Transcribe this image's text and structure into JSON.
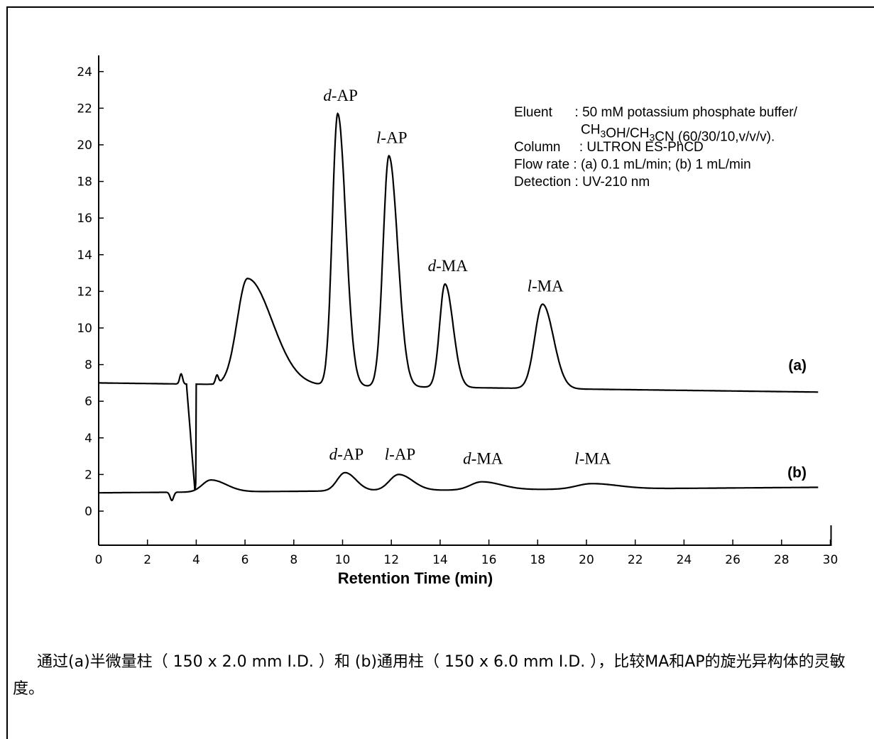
{
  "chart_data": {
    "type": "line",
    "xlabel": "Retention Time (min)",
    "ylabel": "",
    "xlim": [
      0,
      30
    ],
    "ylim": [
      -3,
      26
    ],
    "x_ticks": [
      "0",
      "2",
      "4",
      "6",
      "8",
      "10",
      "12",
      "14",
      "16",
      "18",
      "20",
      "22",
      "24",
      "26",
      "28",
      "30"
    ],
    "y_ticks": [
      "0",
      "2",
      "4",
      "6",
      "8",
      "10",
      "12",
      "14",
      "16",
      "18",
      "20",
      "22",
      "24"
    ],
    "grid": false,
    "conditions": [
      "Eluent      : 50 mM potassium phosphate buffer/",
      "CH3OH/CH3CN (60/30/10,v/v/v).",
      "Column     : ULTRON ES-PhCD",
      "Flow rate : (a) 0.1 mL/min; (b) 1 mL/min",
      "Detection : UV-210 nm"
    ],
    "series": [
      {
        "name": "(a)",
        "baseline_start": 7.0,
        "baseline_end": 6.5,
        "peaks": [
          {
            "label": "d-AP",
            "x": 9.8,
            "y": 21.7
          },
          {
            "label": "l-AP",
            "x": 11.9,
            "y": 19.4
          },
          {
            "label": "d-MA",
            "x": 14.2,
            "y": 12.4
          },
          {
            "label": "l-MA",
            "x": 18.2,
            "y": 11.3
          }
        ],
        "other_peaks": [
          {
            "x": 6.1,
            "y": 12.7
          }
        ]
      },
      {
        "name": "(b)",
        "baseline_start": 1.0,
        "baseline_end": 1.3,
        "peaks": [
          {
            "label": "d-AP",
            "x": 10.1,
            "y": 2.1
          },
          {
            "label": "l-AP",
            "x": 12.3,
            "y": 2.0
          },
          {
            "label": "d-MA",
            "x": 15.7,
            "y": 1.6
          },
          {
            "label": "l-MA",
            "x": 20.2,
            "y": 1.5
          }
        ],
        "other_peaks": [
          {
            "x": 4.6,
            "y": 1.7
          }
        ]
      }
    ]
  },
  "caption": "通过(a)半微量柱（ 150 x 2.0 mm I.D. ）和 (b)通用柱（ 150 x 6.0 mm I.D. ），比较MA和AP的旋光异构体的灵敏度。"
}
